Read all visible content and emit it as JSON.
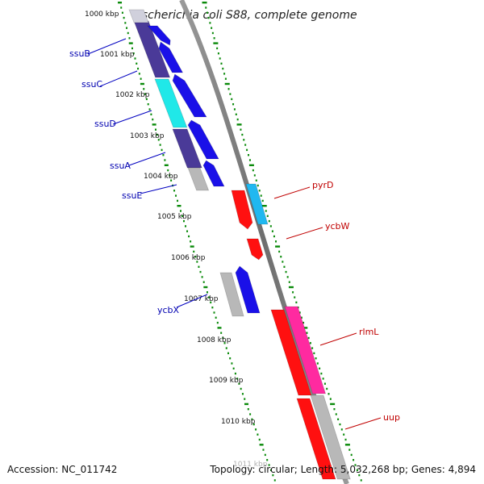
{
  "title": "Escherichia coli S88, complete genome",
  "colors": {
    "forward_gene": "#1a10e8",
    "reverse_gene": "#ff1010",
    "dark_purple": "#4a3a98",
    "cyan": "#20e8e8",
    "sky": "#20b8f0",
    "grey": "#b8b8b8",
    "magenta": "#ff2aa0",
    "backbone": "#808080",
    "ticks": "#0a8a0a"
  },
  "kbp_labels": [
    "1000 kbp",
    "1001 kbp",
    "1002 kbp",
    "1003 kbp",
    "1004 kbp",
    "1005 kbp",
    "1006 kbp",
    "1007 kbp",
    "1008 kbp",
    "1009 kbp",
    "1010 kbp",
    "1011 kbp"
  ],
  "left_genes": [
    "ssuB",
    "ssuC",
    "ssuD",
    "ssuA",
    "ssuE",
    "ycbX"
  ],
  "right_genes": [
    "pyrD",
    "ycbW",
    "rlmL",
    "uup"
  ],
  "footer": {
    "accession": "Accession: NC_011742",
    "topology": "Topology: circular; Length: 5,032,268 bp; Genes: 4,894"
  }
}
